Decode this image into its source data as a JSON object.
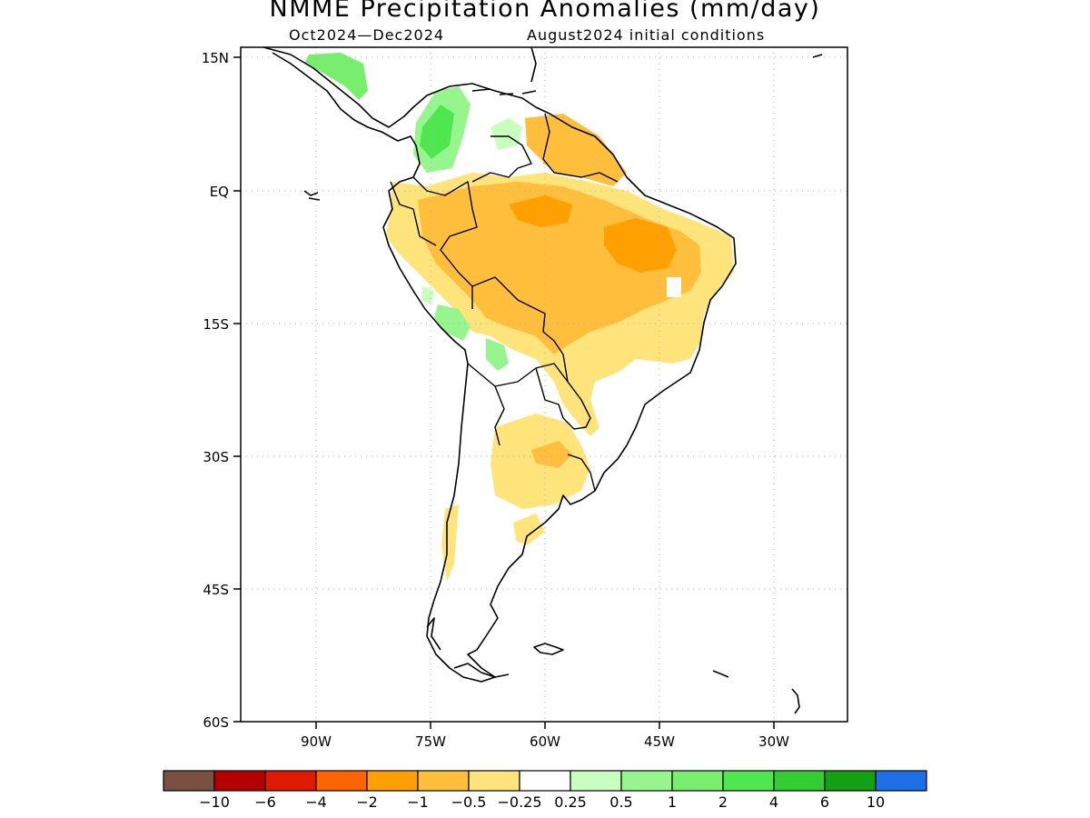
{
  "title": "NMME Precipitation Anomalies (mm/day)",
  "subtitle_period": "Oct2024—Dec2024",
  "subtitle_init": "August2024 initial conditions",
  "lat_labels": [
    "15N",
    "EQ",
    "15S",
    "30S",
    "45S",
    "60S"
  ],
  "lon_labels": [
    "90W",
    "75W",
    "60W",
    "45W",
    "30W"
  ],
  "colorbar": {
    "colors": [
      "#7a5040",
      "#b40000",
      "#e01a00",
      "#ff6400",
      "#ffa000",
      "#ffbe3c",
      "#ffe47c",
      "#ffffff",
      "#c8ffbe",
      "#96f58c",
      "#78ed6e",
      "#50e650",
      "#32cd32",
      "#14a014",
      "#1e6ee6"
    ],
    "labels": [
      "−10",
      "−6",
      "−4",
      "−2",
      "−1",
      "−0.5",
      "−0.25",
      "0.25",
      "0.5",
      "1",
      "2",
      "4",
      "6",
      "10"
    ]
  }
}
